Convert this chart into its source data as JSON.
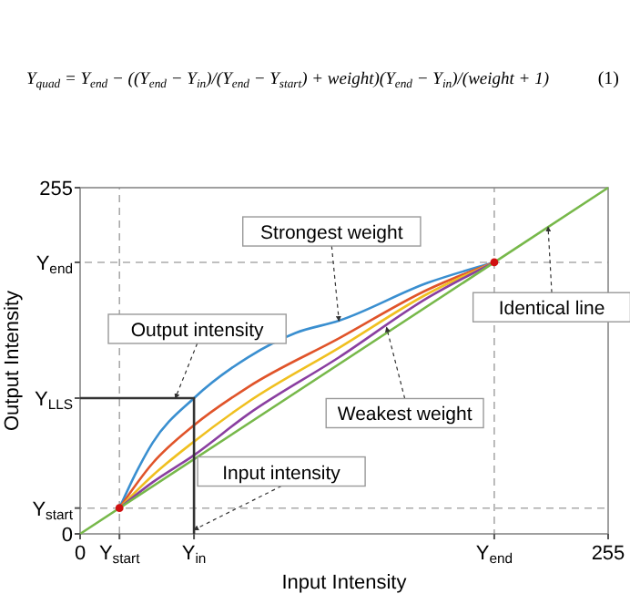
{
  "chart_data": {
    "type": "line",
    "title": "Y$_{quad}$ = Y$_{end}$ − ((Y$_{end}$ − Y$_{in}$)/(Y$_{end}$ − Y$_{start}$) + weight)(Y$_{end}$ − Y$_{in}$)/(weight + 1)",
    "xlabel": "Input Intensity",
    "ylabel": "Output Intensity",
    "xlim": [
      0,
      255
    ],
    "ylim": [
      0,
      255
    ],
    "xticks": [
      0,
      {
        "value": 19,
        "label": "Y$_{start}$"
      },
      {
        "value": 55,
        "label": "Y$_{in}$"
      },
      {
        "value": 200,
        "label": "Y$_{end}$"
      },
      255
    ],
    "yticks": [
      0,
      {
        "value": 19,
        "label": "Y$_{start}$"
      },
      {
        "value": 100,
        "label": "Y$_{LLS}$"
      },
      {
        "value": 200,
        "label": "Y$_{end}$"
      },
      255
    ],
    "series": [
      {
        "color": "#3a8fd0",
        "x": [
          19,
          27,
          35,
          55,
          81,
          104,
          125,
          168,
          200
        ],
        "values": [
          19,
          45,
          67,
          100,
          130,
          148,
          157,
          185,
          200
        ]
      },
      {
        "color": "#e0542a",
        "x": [
          19,
          35,
          55,
          81,
          125,
          168,
          200
        ],
        "values": [
          19,
          52,
          80,
          108,
          144,
          180,
          200
        ]
      },
      {
        "color": "#f0c020",
        "x": [
          19,
          35,
          55,
          81,
          125,
          168,
          200
        ],
        "values": [
          19,
          43,
          68,
          97,
          137,
          177,
          200
        ]
      },
      {
        "color": "#8a3fa0",
        "x": [
          19,
          35,
          55,
          81,
          125,
          168,
          200
        ],
        "values": [
          19,
          38,
          58,
          88,
          130,
          174,
          200
        ]
      },
      {
        "color": "#77b84a",
        "x": [
          0,
          255
        ],
        "values": [
          0,
          255
        ]
      },
      {
        "color": "#333333",
        "x": [
          55,
          55,
          0
        ],
        "values": [
          0,
          100,
          100
        ]
      },
      {
        "type": "scatter",
        "color": "#d01010",
        "x": [
          19,
          200
        ],
        "values": [
          19,
          200
        ]
      }
    ],
    "ref_lines": [
      {
        "axis": "x",
        "value": 19,
        "color": "#aaaaaa",
        "line_style": "dashed"
      },
      {
        "axis": "x",
        "value": 200,
        "color": "#aaaaaa",
        "line_style": "dashed"
      },
      {
        "axis": "y",
        "value": 19,
        "color": "#aaaaaa",
        "line_style": "dashed"
      },
      {
        "axis": "y",
        "value": 200,
        "color": "#aaaaaa",
        "line_style": "dashed"
      }
    ],
    "annotations": [
      "(1)",
      {
        "text": "Strongest weight",
        "x": 125,
        "y": 157
      },
      {
        "text": "Output intensity",
        "x": 46,
        "y": 100
      },
      {
        "text": "Input intensity",
        "x": 55,
        "y": 3
      },
      {
        "text": "Weakest weight",
        "x": 148,
        "y": 152
      },
      {
        "text": "Identical line",
        "x": 226,
        "y": 226
      }
    ]
  }
}
